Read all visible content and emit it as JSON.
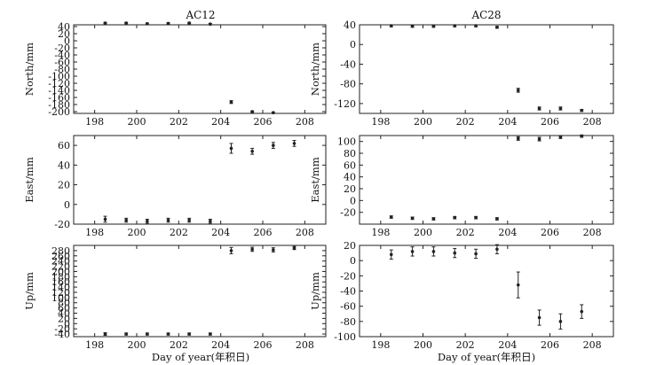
{
  "figure": {
    "column_titles": [
      "AC12",
      "AC28"
    ],
    "xlabel": "Day of year(年积日)"
  },
  "chart_data": [
    {
      "type": "scatter",
      "title": "AC12",
      "ylabel": "North/mm",
      "xlim": [
        197,
        209
      ],
      "ylim": [
        -205,
        45
      ],
      "xticks": [
        198,
        200,
        202,
        204,
        206,
        208
      ],
      "yticks": [
        -200,
        -180,
        -160,
        -140,
        -120,
        -100,
        -80,
        -60,
        -40,
        -20,
        0,
        20,
        40
      ],
      "grid": false,
      "points": [
        {
          "x": 198.5,
          "y": 50,
          "err": 2
        },
        {
          "x": 199.5,
          "y": 50,
          "err": 2
        },
        {
          "x": 200.5,
          "y": 48,
          "err": 2
        },
        {
          "x": 201.5,
          "y": 49,
          "err": 2
        },
        {
          "x": 202.5,
          "y": 50,
          "err": 2
        },
        {
          "x": 203.5,
          "y": 47,
          "err": 2
        },
        {
          "x": 204.5,
          "y": -173,
          "err": 4
        },
        {
          "x": 205.5,
          "y": -200,
          "err": 2
        },
        {
          "x": 206.5,
          "y": -203,
          "err": 2
        }
      ]
    },
    {
      "type": "scatter",
      "title": "AC28",
      "ylabel": "North/mm",
      "xlim": [
        197,
        209
      ],
      "ylim": [
        -140,
        40
      ],
      "xticks": [
        198,
        200,
        202,
        204,
        206,
        208
      ],
      "yticks": [
        -120,
        -80,
        -40,
        0,
        40
      ],
      "grid": false,
      "points": [
        {
          "x": 198.5,
          "y": 38,
          "err": 2
        },
        {
          "x": 199.5,
          "y": 37,
          "err": 2
        },
        {
          "x": 200.5,
          "y": 37,
          "err": 2
        },
        {
          "x": 201.5,
          "y": 38,
          "err": 2
        },
        {
          "x": 202.5,
          "y": 38,
          "err": 2
        },
        {
          "x": 203.5,
          "y": 35,
          "err": 2
        },
        {
          "x": 204.5,
          "y": -93,
          "err": 4
        },
        {
          "x": 205.5,
          "y": -130,
          "err": 3
        },
        {
          "x": 206.5,
          "y": -130,
          "err": 3
        },
        {
          "x": 207.5,
          "y": -134,
          "err": 2
        }
      ]
    },
    {
      "type": "scatter",
      "title": "",
      "ylabel": "East/mm",
      "xlim": [
        197,
        209
      ],
      "ylim": [
        -20,
        70
      ],
      "xticks": [
        198,
        200,
        202,
        204,
        206,
        208
      ],
      "yticks": [
        -20,
        0,
        20,
        40,
        60
      ],
      "grid": false,
      "points": [
        {
          "x": 198.5,
          "y": -15,
          "err": 3
        },
        {
          "x": 199.5,
          "y": -16,
          "err": 2
        },
        {
          "x": 200.5,
          "y": -17,
          "err": 2
        },
        {
          "x": 201.5,
          "y": -16,
          "err": 2
        },
        {
          "x": 202.5,
          "y": -16,
          "err": 2
        },
        {
          "x": 203.5,
          "y": -17,
          "err": 2
        },
        {
          "x": 204.5,
          "y": 57,
          "err": 5
        },
        {
          "x": 205.5,
          "y": 54,
          "err": 3
        },
        {
          "x": 206.5,
          "y": 60,
          "err": 3
        },
        {
          "x": 207.5,
          "y": 62,
          "err": 3
        }
      ]
    },
    {
      "type": "scatter",
      "title": "",
      "ylabel": "East/mm",
      "xlim": [
        197,
        209
      ],
      "ylim": [
        -40,
        110
      ],
      "xticks": [
        198,
        200,
        202,
        204,
        206,
        208
      ],
      "yticks": [
        -20,
        0,
        20,
        40,
        60,
        80,
        100
      ],
      "grid": false,
      "points": [
        {
          "x": 198.5,
          "y": -28,
          "err": 2
        },
        {
          "x": 199.5,
          "y": -30,
          "err": 2
        },
        {
          "x": 200.5,
          "y": -31,
          "err": 2
        },
        {
          "x": 201.5,
          "y": -29,
          "err": 2
        },
        {
          "x": 202.5,
          "y": -29,
          "err": 2
        },
        {
          "x": 203.5,
          "y": -31,
          "err": 2
        },
        {
          "x": 204.5,
          "y": 105,
          "err": 3
        },
        {
          "x": 205.5,
          "y": 104,
          "err": 3
        },
        {
          "x": 206.5,
          "y": 107,
          "err": 2
        },
        {
          "x": 207.5,
          "y": 109,
          "err": 2
        }
      ]
    },
    {
      "type": "scatter",
      "title": "",
      "ylabel": "Up/mm",
      "xlim": [
        197,
        209
      ],
      "ylim": [
        -50,
        300
      ],
      "xticks": [
        198,
        200,
        202,
        204,
        206,
        208
      ],
      "yticks": [
        -40,
        -20,
        0,
        20,
        40,
        60,
        80,
        100,
        120,
        140,
        160,
        180,
        200,
        220,
        240,
        260,
        280
      ],
      "grid": false,
      "points": [
        {
          "x": 198.5,
          "y": -40,
          "err": 5
        },
        {
          "x": 199.5,
          "y": -40,
          "err": 4
        },
        {
          "x": 200.5,
          "y": -40,
          "err": 4
        },
        {
          "x": 201.5,
          "y": -40,
          "err": 4
        },
        {
          "x": 202.5,
          "y": -40,
          "err": 4
        },
        {
          "x": 203.5,
          "y": -40,
          "err": 4
        },
        {
          "x": 204.5,
          "y": 280,
          "err": 12
        },
        {
          "x": 205.5,
          "y": 285,
          "err": 8
        },
        {
          "x": 206.5,
          "y": 283,
          "err": 8
        },
        {
          "x": 207.5,
          "y": 290,
          "err": 6
        }
      ]
    },
    {
      "type": "scatter",
      "title": "",
      "ylabel": "Up/mm",
      "xlim": [
        197,
        209
      ],
      "ylim": [
        -100,
        20
      ],
      "xticks": [
        198,
        200,
        202,
        204,
        206,
        208
      ],
      "yticks": [
        -100,
        -80,
        -60,
        -40,
        -20,
        0,
        20
      ],
      "grid": false,
      "points": [
        {
          "x": 198.5,
          "y": 8,
          "err": 6
        },
        {
          "x": 199.5,
          "y": 12,
          "err": 6
        },
        {
          "x": 200.5,
          "y": 12,
          "err": 6
        },
        {
          "x": 201.5,
          "y": 10,
          "err": 6
        },
        {
          "x": 202.5,
          "y": 9,
          "err": 6
        },
        {
          "x": 203.5,
          "y": 15,
          "err": 6
        },
        {
          "x": 204.5,
          "y": -32,
          "err": 17
        },
        {
          "x": 205.5,
          "y": -75,
          "err": 10
        },
        {
          "x": 206.5,
          "y": -80,
          "err": 10
        },
        {
          "x": 207.5,
          "y": -67,
          "err": 9
        }
      ]
    }
  ]
}
